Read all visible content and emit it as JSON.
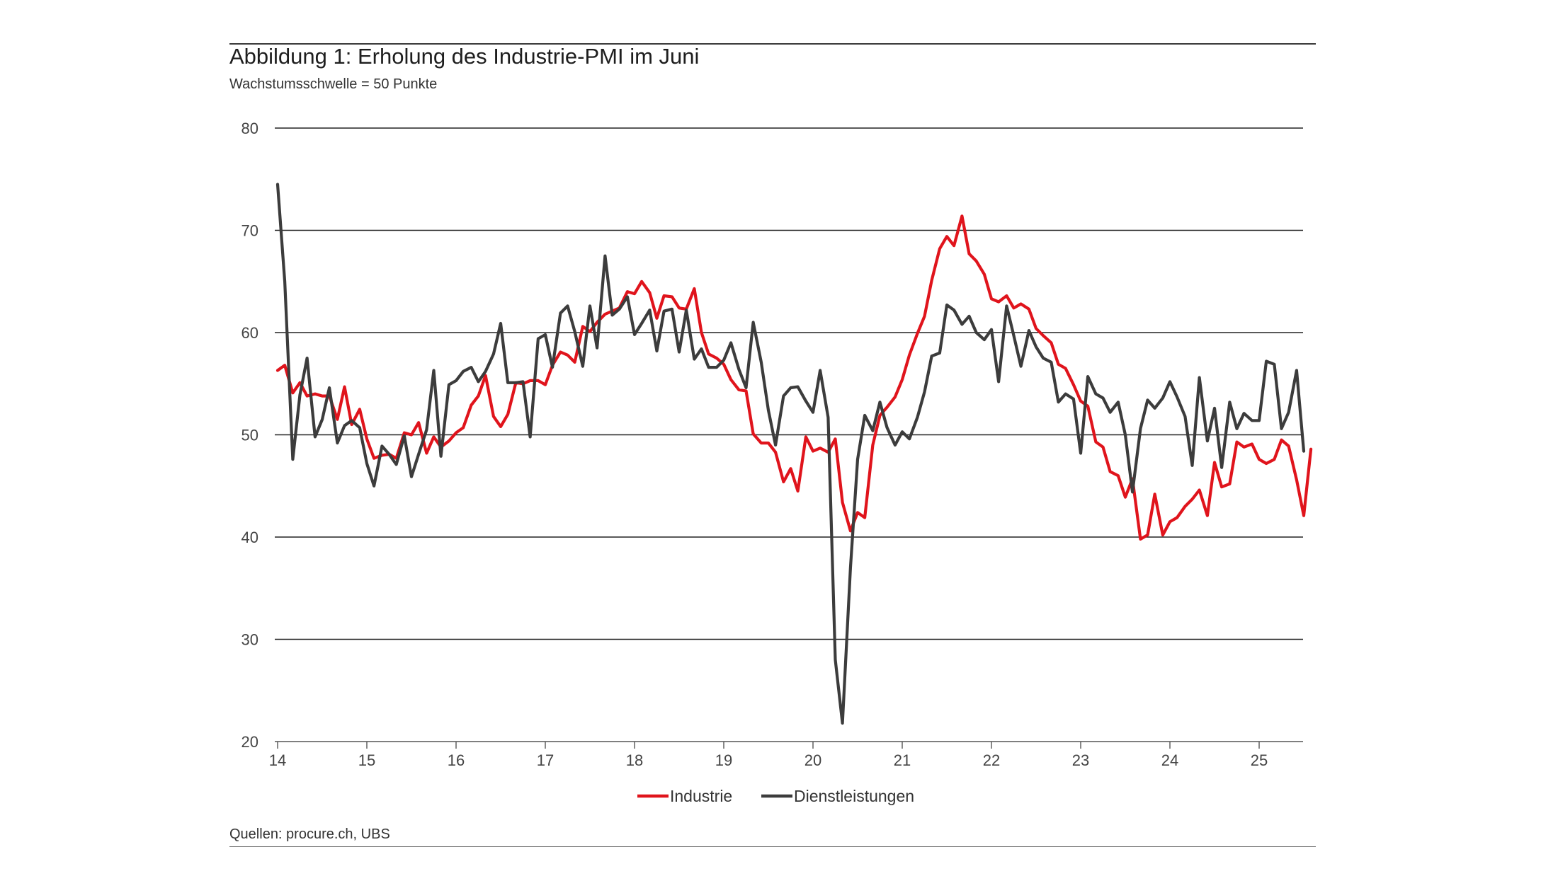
{
  "title": "Abbildung 1: Erholung des Industrie-PMI im Juni",
  "subtitle": "Wachstumsschwelle = 50 Punkte",
  "source": "Quellen: procure.ch, UBS",
  "chart_data": {
    "type": "line",
    "title": "Abbildung 1: Erholung des Industrie-PMI im Juni",
    "subtitle": "Wachstumsschwelle = 50 Punkte",
    "xlabel": "",
    "ylabel": "",
    "ylim": [
      20,
      80
    ],
    "yticks": [
      20,
      30,
      40,
      50,
      60,
      70,
      80
    ],
    "xlim": [
      2014,
      2025.5
    ],
    "xticks": [
      {
        "x": 2014,
        "label": "14"
      },
      {
        "x": 2015,
        "label": "15"
      },
      {
        "x": 2016,
        "label": "16"
      },
      {
        "x": 2017,
        "label": "17"
      },
      {
        "x": 2018,
        "label": "18"
      },
      {
        "x": 2019,
        "label": "19"
      },
      {
        "x": 2020,
        "label": "20"
      },
      {
        "x": 2021,
        "label": "21"
      },
      {
        "x": 2022,
        "label": "22"
      },
      {
        "x": 2023,
        "label": "23"
      },
      {
        "x": 2024,
        "label": "24"
      },
      {
        "x": 2025,
        "label": "25"
      }
    ],
    "grid": "horizontal",
    "legend": "bottom-center",
    "series": [
      {
        "name": "Industrie",
        "color": "#e0141c",
        "points": [
          [
            2014.0,
            56.3
          ],
          [
            2014.08,
            56.8
          ],
          [
            2014.17,
            54.1
          ],
          [
            2014.25,
            55.1
          ],
          [
            2014.33,
            53.8
          ],
          [
            2014.42,
            54.0
          ],
          [
            2014.5,
            53.8
          ],
          [
            2014.58,
            53.8
          ],
          [
            2014.67,
            51.5
          ],
          [
            2014.75,
            54.7
          ],
          [
            2014.83,
            51.0
          ],
          [
            2014.92,
            52.5
          ],
          [
            2015.0,
            49.6
          ],
          [
            2015.08,
            47.7
          ],
          [
            2015.17,
            48.0
          ],
          [
            2015.25,
            48.1
          ],
          [
            2015.33,
            47.7
          ],
          [
            2015.42,
            50.2
          ],
          [
            2015.5,
            50.0
          ],
          [
            2015.58,
            51.2
          ],
          [
            2015.67,
            48.2
          ],
          [
            2015.75,
            49.8
          ],
          [
            2015.83,
            48.8
          ],
          [
            2015.92,
            49.4
          ],
          [
            2016.0,
            50.2
          ],
          [
            2016.08,
            50.7
          ],
          [
            2016.17,
            52.9
          ],
          [
            2016.25,
            53.8
          ],
          [
            2016.33,
            55.8
          ],
          [
            2016.42,
            51.8
          ],
          [
            2016.5,
            50.8
          ],
          [
            2016.58,
            52.0
          ],
          [
            2016.67,
            55.1
          ],
          [
            2016.75,
            55.0
          ],
          [
            2016.83,
            55.3
          ],
          [
            2016.92,
            55.3
          ],
          [
            2017.0,
            54.9
          ],
          [
            2017.08,
            56.8
          ],
          [
            2017.17,
            58.1
          ],
          [
            2017.25,
            57.8
          ],
          [
            2017.33,
            57.1
          ],
          [
            2017.42,
            60.6
          ],
          [
            2017.5,
            60.1
          ],
          [
            2017.58,
            61.0
          ],
          [
            2017.67,
            61.8
          ],
          [
            2017.75,
            62.1
          ],
          [
            2017.83,
            62.4
          ],
          [
            2017.92,
            64.0
          ],
          [
            2018.0,
            63.8
          ],
          [
            2018.08,
            65.0
          ],
          [
            2018.17,
            63.9
          ],
          [
            2018.25,
            61.4
          ],
          [
            2018.33,
            63.6
          ],
          [
            2018.42,
            63.5
          ],
          [
            2018.5,
            62.4
          ],
          [
            2018.58,
            62.3
          ],
          [
            2018.67,
            64.3
          ],
          [
            2018.75,
            60.0
          ],
          [
            2018.83,
            57.9
          ],
          [
            2018.92,
            57.5
          ],
          [
            2019.0,
            56.9
          ],
          [
            2019.08,
            55.4
          ],
          [
            2019.17,
            54.4
          ],
          [
            2019.25,
            54.3
          ],
          [
            2019.33,
            50.1
          ],
          [
            2019.42,
            49.2
          ],
          [
            2019.5,
            49.2
          ],
          [
            2019.58,
            48.3
          ],
          [
            2019.67,
            45.4
          ],
          [
            2019.75,
            46.7
          ],
          [
            2019.83,
            44.5
          ],
          [
            2019.92,
            49.8
          ],
          [
            2020.0,
            48.4
          ],
          [
            2020.08,
            48.7
          ],
          [
            2020.17,
            48.3
          ],
          [
            2020.25,
            49.6
          ],
          [
            2020.33,
            43.4
          ],
          [
            2020.42,
            40.6
          ],
          [
            2020.5,
            42.4
          ],
          [
            2020.58,
            41.9
          ],
          [
            2020.67,
            49.0
          ],
          [
            2020.75,
            51.9
          ],
          [
            2020.83,
            52.7
          ],
          [
            2020.92,
            53.7
          ],
          [
            2021.0,
            55.4
          ],
          [
            2021.08,
            57.8
          ],
          [
            2021.17,
            59.9
          ],
          [
            2021.25,
            61.6
          ],
          [
            2021.33,
            65.1
          ],
          [
            2021.42,
            68.2
          ],
          [
            2021.5,
            69.4
          ],
          [
            2021.58,
            68.5
          ],
          [
            2021.67,
            71.4
          ],
          [
            2021.75,
            67.7
          ],
          [
            2021.83,
            67.0
          ],
          [
            2021.92,
            65.7
          ],
          [
            2022.0,
            63.3
          ],
          [
            2022.08,
            63.0
          ],
          [
            2022.17,
            63.6
          ],
          [
            2022.25,
            62.4
          ],
          [
            2022.33,
            62.8
          ],
          [
            2022.42,
            62.3
          ],
          [
            2022.5,
            60.4
          ],
          [
            2022.58,
            59.7
          ],
          [
            2022.67,
            59.0
          ],
          [
            2022.75,
            56.9
          ],
          [
            2022.83,
            56.5
          ],
          [
            2022.92,
            54.9
          ],
          [
            2023.0,
            53.3
          ],
          [
            2023.08,
            52.8
          ],
          [
            2023.17,
            49.3
          ],
          [
            2023.25,
            48.8
          ],
          [
            2023.33,
            46.4
          ],
          [
            2023.42,
            46.0
          ],
          [
            2023.5,
            43.9
          ],
          [
            2023.58,
            45.7
          ],
          [
            2023.67,
            39.8
          ],
          [
            2023.75,
            40.2
          ],
          [
            2023.83,
            44.2
          ],
          [
            2023.92,
            40.2
          ],
          [
            2024.0,
            41.5
          ],
          [
            2024.08,
            41.9
          ],
          [
            2024.17,
            43.0
          ],
          [
            2024.25,
            43.7
          ],
          [
            2024.33,
            44.6
          ],
          [
            2024.42,
            42.1
          ],
          [
            2024.5,
            47.3
          ],
          [
            2024.58,
            44.9
          ],
          [
            2024.67,
            45.2
          ],
          [
            2024.75,
            49.3
          ],
          [
            2024.83,
            48.8
          ],
          [
            2024.92,
            49.1
          ],
          [
            2025.0,
            47.6
          ],
          [
            2025.08,
            47.2
          ],
          [
            2025.17,
            47.6
          ],
          [
            2025.25,
            49.5
          ],
          [
            2025.33,
            48.9
          ],
          [
            2025.42,
            45.6
          ],
          [
            2025.5,
            42.1
          ],
          [
            2025.58,
            48.6
          ]
        ]
      },
      {
        "name": "Dienstleistungen",
        "color": "#3c3c3c",
        "points": [
          [
            2014.0,
            74.5
          ],
          [
            2014.08,
            65.0
          ],
          [
            2014.17,
            47.6
          ],
          [
            2014.25,
            53.9
          ],
          [
            2014.33,
            57.5
          ],
          [
            2014.42,
            49.8
          ],
          [
            2014.5,
            51.5
          ],
          [
            2014.58,
            54.6
          ],
          [
            2014.67,
            49.2
          ],
          [
            2014.75,
            50.9
          ],
          [
            2014.83,
            51.4
          ],
          [
            2014.92,
            50.7
          ],
          [
            2015.0,
            47.2
          ],
          [
            2015.08,
            45.0
          ],
          [
            2015.17,
            48.9
          ],
          [
            2015.25,
            48.1
          ],
          [
            2015.33,
            47.1
          ],
          [
            2015.42,
            49.9
          ],
          [
            2015.5,
            45.9
          ],
          [
            2015.58,
            48.1
          ],
          [
            2015.67,
            50.5
          ],
          [
            2015.75,
            56.3
          ],
          [
            2015.83,
            47.9
          ],
          [
            2015.92,
            54.9
          ],
          [
            2016.0,
            55.3
          ],
          [
            2016.08,
            56.2
          ],
          [
            2016.17,
            56.6
          ],
          [
            2016.25,
            55.2
          ],
          [
            2016.33,
            56.2
          ],
          [
            2016.42,
            57.9
          ],
          [
            2016.5,
            60.9
          ],
          [
            2016.58,
            55.1
          ],
          [
            2016.67,
            55.1
          ],
          [
            2016.75,
            55.2
          ],
          [
            2016.83,
            49.8
          ],
          [
            2016.92,
            59.4
          ],
          [
            2017.0,
            59.8
          ],
          [
            2017.08,
            56.6
          ],
          [
            2017.17,
            61.9
          ],
          [
            2017.25,
            62.6
          ],
          [
            2017.33,
            60.1
          ],
          [
            2017.42,
            56.7
          ],
          [
            2017.5,
            62.6
          ],
          [
            2017.58,
            58.5
          ],
          [
            2017.67,
            67.5
          ],
          [
            2017.75,
            61.7
          ],
          [
            2017.83,
            62.3
          ],
          [
            2017.92,
            63.5
          ],
          [
            2018.0,
            59.8
          ],
          [
            2018.08,
            60.9
          ],
          [
            2018.17,
            62.2
          ],
          [
            2018.25,
            58.2
          ],
          [
            2018.33,
            62.1
          ],
          [
            2018.42,
            62.3
          ],
          [
            2018.5,
            58.1
          ],
          [
            2018.58,
            62.2
          ],
          [
            2018.67,
            57.4
          ],
          [
            2018.75,
            58.4
          ],
          [
            2018.83,
            56.6
          ],
          [
            2018.92,
            56.6
          ],
          [
            2019.0,
            57.3
          ],
          [
            2019.08,
            59.0
          ],
          [
            2019.17,
            56.4
          ],
          [
            2019.25,
            54.6
          ],
          [
            2019.33,
            61.0
          ],
          [
            2019.42,
            57.1
          ],
          [
            2019.5,
            52.4
          ],
          [
            2019.58,
            49.0
          ],
          [
            2019.67,
            53.8
          ],
          [
            2019.75,
            54.6
          ],
          [
            2019.83,
            54.7
          ],
          [
            2019.92,
            53.3
          ],
          [
            2020.0,
            52.2
          ],
          [
            2020.08,
            56.3
          ],
          [
            2020.17,
            51.7
          ],
          [
            2020.25,
            28.0
          ],
          [
            2020.33,
            21.8
          ],
          [
            2020.42,
            37.0
          ],
          [
            2020.5,
            47.6
          ],
          [
            2020.58,
            51.9
          ],
          [
            2020.67,
            50.4
          ],
          [
            2020.75,
            53.2
          ],
          [
            2020.83,
            50.7
          ],
          [
            2020.92,
            49.0
          ],
          [
            2021.0,
            50.3
          ],
          [
            2021.08,
            49.6
          ],
          [
            2021.17,
            51.7
          ],
          [
            2021.25,
            54.2
          ],
          [
            2021.33,
            57.7
          ],
          [
            2021.42,
            58.0
          ],
          [
            2021.5,
            62.7
          ],
          [
            2021.58,
            62.2
          ],
          [
            2021.67,
            60.8
          ],
          [
            2021.75,
            61.6
          ],
          [
            2021.83,
            60.0
          ],
          [
            2021.92,
            59.3
          ],
          [
            2022.0,
            60.3
          ],
          [
            2022.08,
            55.2
          ],
          [
            2022.17,
            62.6
          ],
          [
            2022.25,
            59.7
          ],
          [
            2022.33,
            56.7
          ],
          [
            2022.42,
            60.2
          ],
          [
            2022.5,
            58.6
          ],
          [
            2022.58,
            57.5
          ],
          [
            2022.67,
            57.1
          ],
          [
            2022.75,
            53.2
          ],
          [
            2022.83,
            54.0
          ],
          [
            2022.92,
            53.5
          ],
          [
            2023.0,
            48.2
          ],
          [
            2023.08,
            55.7
          ],
          [
            2023.17,
            54.0
          ],
          [
            2023.25,
            53.6
          ],
          [
            2023.33,
            52.2
          ],
          [
            2023.42,
            53.2
          ],
          [
            2023.5,
            50.0
          ],
          [
            2023.58,
            44.4
          ],
          [
            2023.67,
            50.6
          ],
          [
            2023.75,
            53.4
          ],
          [
            2023.83,
            52.6
          ],
          [
            2023.92,
            53.6
          ],
          [
            2024.0,
            55.2
          ],
          [
            2024.08,
            53.7
          ],
          [
            2024.17,
            51.8
          ],
          [
            2024.25,
            47.0
          ],
          [
            2024.33,
            55.6
          ],
          [
            2024.42,
            49.4
          ],
          [
            2024.5,
            52.6
          ],
          [
            2024.58,
            46.8
          ],
          [
            2024.67,
            53.2
          ],
          [
            2024.75,
            50.6
          ],
          [
            2024.83,
            52.1
          ],
          [
            2024.92,
            51.4
          ],
          [
            2025.0,
            51.4
          ],
          [
            2025.08,
            57.2
          ],
          [
            2025.17,
            56.9
          ],
          [
            2025.25,
            50.6
          ],
          [
            2025.33,
            52.2
          ],
          [
            2025.42,
            56.3
          ],
          [
            2025.5,
            48.4
          ]
        ]
      }
    ]
  }
}
